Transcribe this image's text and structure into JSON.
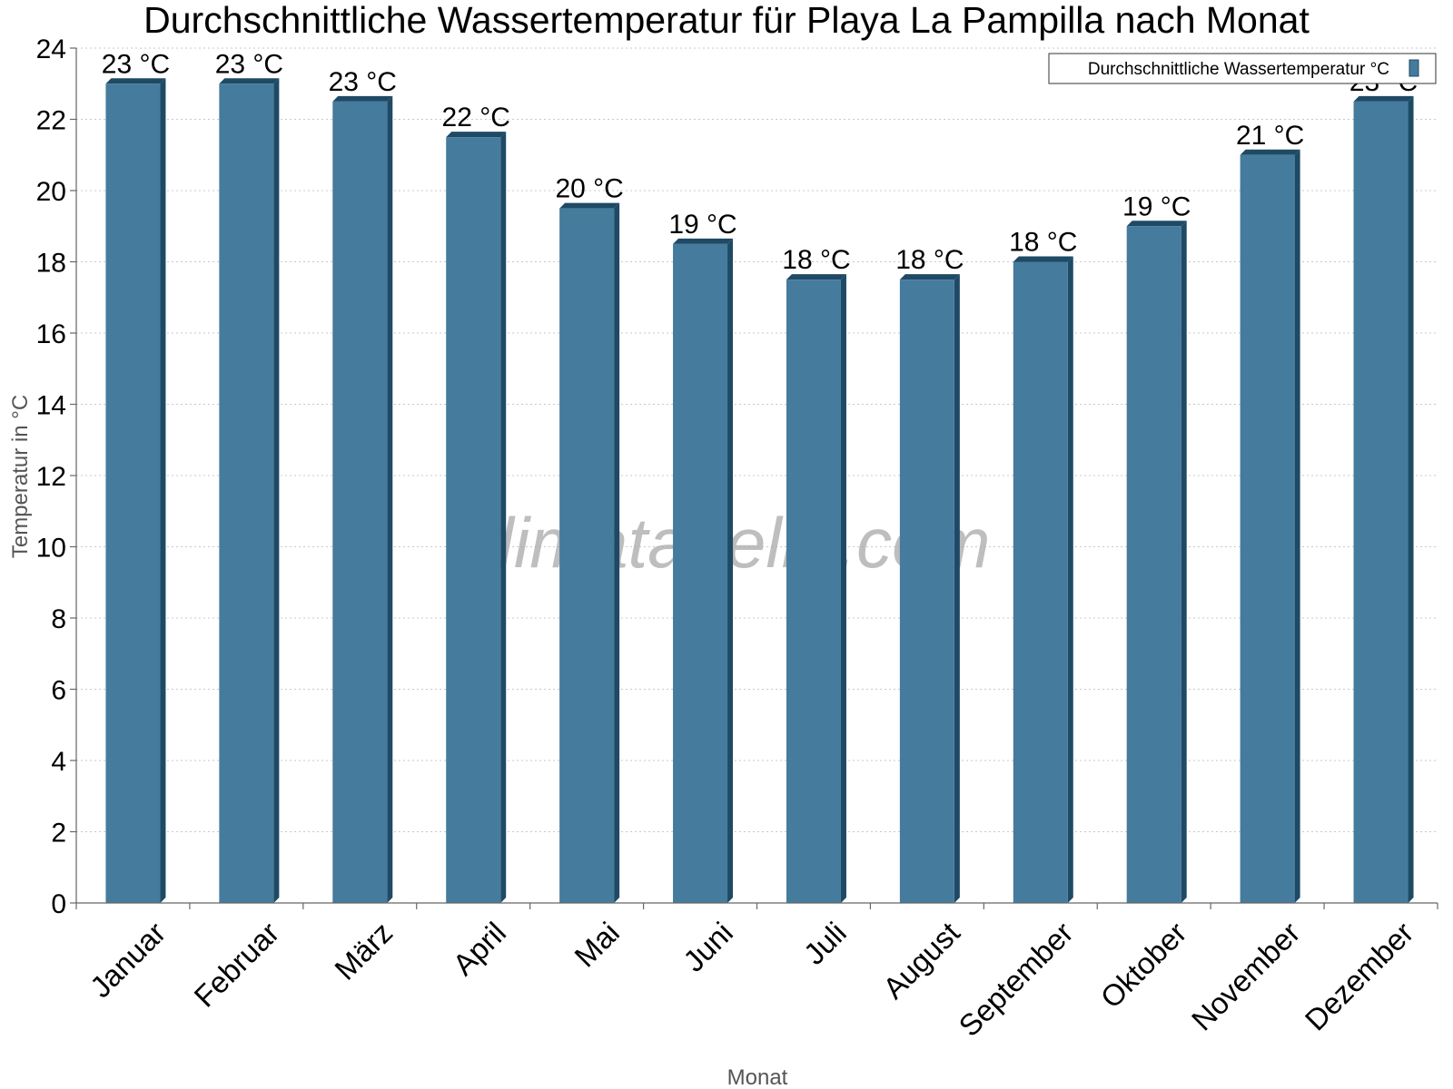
{
  "chart_data": {
    "type": "bar",
    "title": "Durchschnittliche Wassertemperatur für Playa La Pampilla nach Monat",
    "xlabel": "Monat",
    "ylabel": "Temperatur in °C",
    "ylim": [
      0,
      24
    ],
    "yticks": [
      0,
      2,
      4,
      6,
      8,
      10,
      12,
      14,
      16,
      18,
      20,
      22,
      24
    ],
    "grid": true,
    "legend_position": "top-right",
    "categories": [
      "Januar",
      "Februar",
      "März",
      "April",
      "Mai",
      "Juni",
      "Juli",
      "August",
      "September",
      "Oktober",
      "November",
      "Dezember"
    ],
    "series": [
      {
        "name": "Durchschnittliche Wassertemperatur °C",
        "color": "#457b9d",
        "values": [
          23,
          23,
          22.5,
          21.5,
          19.5,
          18.5,
          17.5,
          17.5,
          18,
          19,
          21,
          22.5
        ],
        "labels": [
          "23 °C",
          "23 °C",
          "23 °C",
          "22 °C",
          "20 °C",
          "19 °C",
          "18 °C",
          "18 °C",
          "18 °C",
          "19 °C",
          "21 °C",
          "23 °C"
        ]
      }
    ]
  },
  "watermark": "klimatabelle.com"
}
